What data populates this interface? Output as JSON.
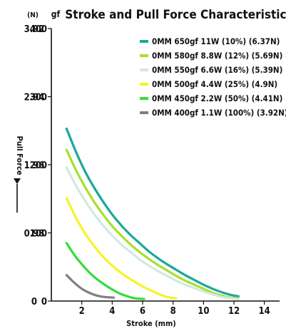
{
  "chart_data": {
    "type": "line",
    "title": "Stroke and Pull Force Characteristics",
    "xlabel": "Stroke (mm)",
    "ylabel": "Pull Force",
    "y_units_left": "(N)",
    "y_units_right": "gf",
    "xlim": [
      0,
      15
    ],
    "ylim": [
      0,
      400
    ],
    "x_ticks": [
      2,
      4,
      6,
      8,
      10,
      12,
      14
    ],
    "y_ticks_gf": [
      0,
      100,
      200,
      300,
      400
    ],
    "y_ticks_N": [
      "0",
      "0.98",
      "1.96",
      "2.94",
      "3.92"
    ],
    "grid": false,
    "legend_position": "top-right",
    "series": [
      {
        "name": "0MM 650gf 11W (10%) (6.37N)",
        "color": "#1aa89a",
        "x": [
          1.0,
          1.6,
          2.2,
          2.8,
          3.4,
          4.0,
          4.6,
          5.2,
          5.8,
          6.4,
          7.0,
          7.6,
          8.2,
          8.8,
          9.4,
          10.0,
          10.6,
          11.2,
          11.8,
          12.3
        ],
        "y": [
          253,
          220,
          191,
          167,
          146,
          127,
          111,
          97,
          85,
          73,
          63,
          54,
          46,
          38,
          31,
          24,
          18,
          13,
          9,
          7
        ]
      },
      {
        "name": "0MM 580gf 8.8W (12%) (5.69N)",
        "color": "#a6e02e",
        "x": [
          1.0,
          1.6,
          2.2,
          2.8,
          3.4,
          4.0,
          4.6,
          5.2,
          5.8,
          6.4,
          7.0,
          7.6,
          8.2,
          8.8,
          9.4,
          10.0,
          10.6,
          11.2,
          11.8,
          12.3
        ],
        "y": [
          222,
          193,
          168,
          146,
          127,
          110,
          96,
          83,
          72,
          62,
          53,
          45,
          37,
          30,
          24,
          18,
          12,
          8,
          5,
          4
        ]
      },
      {
        "name": "0MM 550gf 6.6W (16%) (5.39N)",
        "color": "#d3e8e2",
        "x": [
          1.0,
          1.6,
          2.2,
          2.8,
          3.4,
          4.0,
          4.6,
          5.2,
          5.8,
          6.4,
          7.0,
          7.6,
          8.2,
          8.8,
          9.4,
          10.0,
          10.6,
          11.2,
          11.8,
          12.3
        ],
        "y": [
          196,
          170,
          148,
          128,
          111,
          96,
          83,
          72,
          61,
          52,
          44,
          37,
          30,
          24,
          19,
          14,
          10,
          6,
          4,
          3
        ]
      },
      {
        "name": "0MM 500gf 4.4W (25%) (4.9N)",
        "color": "#f4f42a",
        "x": [
          1.0,
          1.6,
          2.2,
          2.8,
          3.4,
          4.0,
          4.6,
          5.2,
          5.8,
          6.4,
          7.0,
          7.6,
          8.2
        ],
        "y": [
          151,
          123,
          100,
          81,
          65,
          52,
          41,
          32,
          24,
          17,
          11,
          6,
          4
        ]
      },
      {
        "name": "0MM 450gf 2.2W (50%) (4.41N)",
        "color": "#33dd3a",
        "x": [
          1.0,
          1.5,
          2.0,
          2.5,
          3.0,
          3.5,
          4.0,
          4.5,
          5.0,
          5.5,
          6.1
        ],
        "y": [
          85,
          68,
          54,
          42,
          32,
          24,
          17,
          11,
          7,
          4,
          3
        ]
      },
      {
        "name": "0MM 400gf 1.1W (100%) (3.92N)",
        "color": "#7f7f7f",
        "x": [
          1.0,
          1.5,
          2.0,
          2.5,
          3.0,
          3.5,
          4.1
        ],
        "y": [
          38,
          27,
          18,
          12,
          8,
          6,
          5
        ]
      }
    ]
  }
}
